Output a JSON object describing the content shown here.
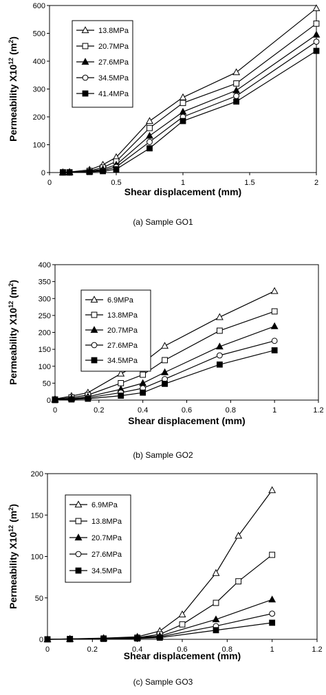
{
  "chart_data": [
    {
      "type": "line",
      "caption": "(a) Sample GO1",
      "xlabel": "Shear displacement (mm)",
      "ylabel": {
        "main": "Permeability X10",
        "sup": "12",
        "unit_pre": " (m",
        "unit_sup": "2",
        "unit_post": ")"
      },
      "xlim": [
        0,
        2
      ],
      "ylim": [
        0,
        600
      ],
      "xticks": [
        0,
        0.5,
        1,
        1.5,
        2
      ],
      "xtick_labels": [
        "0",
        "0.5",
        "1",
        "1.5",
        "2"
      ],
      "yticks": [
        0,
        100,
        200,
        300,
        400,
        500,
        600
      ],
      "ytick_labels": [
        "0",
        "100",
        "200",
        "300",
        "400",
        "500",
        "600"
      ],
      "legend_position": "top-left",
      "series": [
        {
          "name": "13.8MPa",
          "marker": "triangle-open",
          "x": [
            0.1,
            0.15,
            0.3,
            0.4,
            0.5,
            0.75,
            1,
            1.4,
            2
          ],
          "y": [
            1,
            2,
            10,
            28,
            55,
            185,
            270,
            360,
            590
          ]
        },
        {
          "name": "20.7MPa",
          "marker": "square-open",
          "x": [
            0.1,
            0.15,
            0.3,
            0.4,
            0.5,
            0.75,
            1,
            1.4,
            2
          ],
          "y": [
            1,
            1,
            6,
            18,
            40,
            160,
            250,
            320,
            535
          ]
        },
        {
          "name": "27.6MPa",
          "marker": "triangle-filled",
          "x": [
            0.1,
            0.15,
            0.3,
            0.4,
            0.5,
            0.75,
            1,
            1.4,
            2
          ],
          "y": [
            0,
            1,
            4,
            12,
            28,
            132,
            218,
            295,
            495
          ]
        },
        {
          "name": "34.5MPa",
          "marker": "circle-open",
          "x": [
            0.1,
            0.15,
            0.3,
            0.4,
            0.5,
            0.75,
            1,
            1.4,
            2
          ],
          "y": [
            0,
            0,
            3,
            8,
            20,
            110,
            200,
            275,
            470
          ]
        },
        {
          "name": "41.4MPa",
          "marker": "square-filled",
          "x": [
            0.1,
            0.15,
            0.3,
            0.4,
            0.5,
            0.75,
            1,
            1.4,
            2
          ],
          "y": [
            0,
            0,
            2,
            5,
            12,
            87,
            185,
            255,
            437
          ]
        }
      ]
    },
    {
      "type": "line",
      "caption": "(b) Sample GO2",
      "xlabel": "Shear displacement (mm)",
      "ylabel": {
        "main": "Permeability X10",
        "sup": "12",
        "unit_pre": " (m",
        "unit_sup": "2",
        "unit_post": ")"
      },
      "xlim": [
        0,
        1.2
      ],
      "ylim": [
        0,
        400
      ],
      "xticks": [
        0,
        0.2,
        0.4,
        0.6,
        0.8,
        1,
        1.2
      ],
      "xtick_labels": [
        "0",
        "0.2",
        "0.4",
        "0.6",
        "0.8",
        "1",
        "1.2"
      ],
      "yticks": [
        0,
        50,
        100,
        150,
        200,
        250,
        300,
        350,
        400
      ],
      "ytick_labels": [
        "0",
        "50",
        "100",
        "150",
        "200",
        "250",
        "300",
        "350",
        "400"
      ],
      "legend_position": "top-left",
      "series": [
        {
          "name": "6.9MPa",
          "marker": "triangle-open",
          "x": [
            0,
            0.075,
            0.15,
            0.3,
            0.4,
            0.5,
            0.75,
            1
          ],
          "y": [
            3,
            12,
            22,
            78,
            110,
            160,
            245,
            322
          ]
        },
        {
          "name": "13.8MPa",
          "marker": "square-open",
          "x": [
            0,
            0.075,
            0.15,
            0.3,
            0.4,
            0.5,
            0.75,
            1
          ],
          "y": [
            2,
            8,
            15,
            50,
            75,
            118,
            205,
            262
          ]
        },
        {
          "name": "20.7MPa",
          "marker": "triangle-filled",
          "x": [
            0,
            0.075,
            0.15,
            0.3,
            0.4,
            0.5,
            0.75,
            1
          ],
          "y": [
            1,
            5,
            10,
            32,
            50,
            82,
            158,
            218
          ]
        },
        {
          "name": "27.6MPa",
          "marker": "circle-open",
          "x": [
            0,
            0.075,
            0.15,
            0.3,
            0.4,
            0.5,
            0.75,
            1
          ],
          "y": [
            1,
            3,
            7,
            22,
            35,
            62,
            132,
            175
          ]
        },
        {
          "name": "34.5MPa",
          "marker": "square-filled",
          "x": [
            0,
            0.075,
            0.15,
            0.3,
            0.4,
            0.5,
            0.75,
            1
          ],
          "y": [
            0,
            2,
            4,
            13,
            22,
            48,
            105,
            147
          ]
        }
      ]
    },
    {
      "type": "line",
      "caption": "(c) Sample GO3",
      "xlabel": "Shear displacement (mm)",
      "ylabel": {
        "main": "Permeability  X10",
        "sup": "12",
        "unit_pre": " (m",
        "unit_sup": "2",
        "unit_post": ")"
      },
      "xlim": [
        0,
        1.2
      ],
      "ylim": [
        0,
        200
      ],
      "xticks": [
        0,
        0.2,
        0.4,
        0.6,
        0.8,
        1,
        1.2
      ],
      "xtick_labels": [
        "0",
        "0.2",
        "0.4",
        "0.6",
        "0.8",
        "1",
        "1.2"
      ],
      "yticks": [
        0,
        50,
        100,
        150,
        200
      ],
      "ytick_labels": [
        "0",
        "50",
        "100",
        "150",
        "200"
      ],
      "legend_position": "top-left",
      "series": [
        {
          "name": "6.9MPa",
          "marker": "triangle-open",
          "x": [
            0,
            0.1,
            0.25,
            0.4,
            0.5,
            0.6,
            0.75,
            0.85,
            1
          ],
          "y": [
            0,
            0.5,
            1.5,
            3,
            10,
            30,
            80,
            125,
            180
          ]
        },
        {
          "name": "13.8MPa",
          "marker": "square-open",
          "x": [
            0,
            0.1,
            0.25,
            0.4,
            0.5,
            0.6,
            0.75,
            0.85,
            1
          ],
          "y": [
            0,
            0.5,
            1,
            2,
            6,
            18,
            44,
            70,
            102
          ]
        },
        {
          "name": "20.7MPa",
          "marker": "triangle-filled",
          "x": [
            0,
            0.1,
            0.25,
            0.4,
            0.5,
            0.75,
            1
          ],
          "y": [
            0,
            0.3,
            1,
            2,
            4,
            24,
            48
          ]
        },
        {
          "name": "27.6MPa",
          "marker": "circle-open",
          "x": [
            0,
            0.1,
            0.25,
            0.4,
            0.5,
            0.75,
            1
          ],
          "y": [
            0,
            0.2,
            0.8,
            1.5,
            3,
            16,
            31
          ]
        },
        {
          "name": "34.5MPa",
          "marker": "square-filled",
          "x": [
            0,
            0.1,
            0.25,
            0.4,
            0.5,
            0.75,
            1
          ],
          "y": [
            0,
            0.1,
            0.5,
            1,
            2,
            11,
            20
          ]
        }
      ]
    }
  ]
}
